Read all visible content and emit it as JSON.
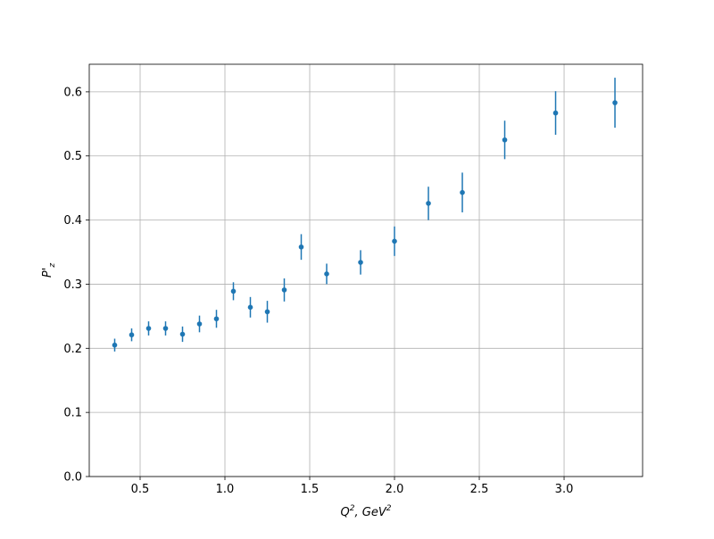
{
  "chart_data": {
    "type": "errorbar",
    "xlabel_parts": [
      "Q",
      "2",
      ", GeV",
      "2"
    ],
    "ylabel_parts": [
      "P'",
      "z"
    ],
    "x": [
      0.35,
      0.45,
      0.55,
      0.65,
      0.75,
      0.85,
      0.95,
      1.05,
      1.15,
      1.25,
      1.35,
      1.45,
      1.6,
      1.8,
      2.0,
      2.2,
      2.4,
      2.65,
      2.95,
      3.3
    ],
    "values": [
      0.205,
      0.221,
      0.231,
      0.231,
      0.222,
      0.238,
      0.246,
      0.289,
      0.264,
      0.257,
      0.291,
      0.358,
      0.316,
      0.334,
      0.367,
      0.426,
      0.443,
      0.525,
      0.567,
      0.583
    ],
    "errors": [
      0.01,
      0.01,
      0.011,
      0.011,
      0.012,
      0.013,
      0.014,
      0.014,
      0.016,
      0.017,
      0.018,
      0.02,
      0.016,
      0.019,
      0.023,
      0.026,
      0.031,
      0.03,
      0.034,
      0.039
    ],
    "color": "#1f77b4",
    "xlim": [
      0.2,
      3.463
    ],
    "ylim": [
      0,
      0.643
    ],
    "xticks": [
      0.5,
      {
        "value": 1,
        "label": "1.0"
      },
      1.5,
      {
        "value": 2,
        "label": "2.0"
      },
      2.5,
      {
        "value": 3,
        "label": "3.0"
      }
    ],
    "yticks": [
      {
        "value": 0,
        "label": "0.0"
      },
      0.1,
      0.2,
      0.3,
      0.4,
      0.5,
      0.6
    ],
    "grid": true
  }
}
